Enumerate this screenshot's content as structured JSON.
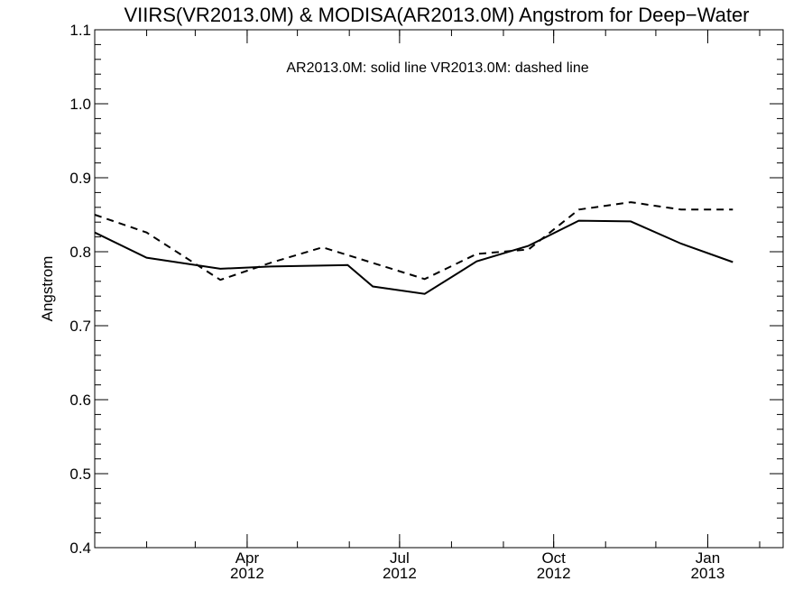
{
  "chart_data": {
    "type": "line",
    "title": "VIIRS(VR2013.0M) & MODISA(AR2013.0M)  Angstrom for Deep−Water",
    "legend_text": "AR2013.0M: solid line   VR2013.0M: dashed line",
    "xlabel": "",
    "ylabel": "Angstrom",
    "ylim": [
      0.4,
      1.1
    ],
    "yticks": [
      0.4,
      0.5,
      0.6,
      0.7,
      0.8,
      0.9,
      1.0,
      1.1
    ],
    "ytick_labels": [
      "0.4",
      "0.5",
      "0.6",
      "0.7",
      "0.8",
      "0.9",
      "1.0",
      "1.1"
    ],
    "xlim": [
      "2012-01-01",
      "2013-02-15"
    ],
    "xticks": [
      {
        "date": "2012-04-01",
        "month": "Apr",
        "year": "2012"
      },
      {
        "date": "2012-07-01",
        "month": "Jul",
        "year": "2012"
      },
      {
        "date": "2012-10-01",
        "month": "Oct",
        "year": "2012"
      },
      {
        "date": "2013-01-01",
        "month": "Jan",
        "year": "2013"
      }
    ],
    "series": [
      {
        "name": "AR2013.0M",
        "style": "solid",
        "points": [
          {
            "x": "2012-01-01",
            "y": 0.826
          },
          {
            "x": "2012-02-01",
            "y": 0.792
          },
          {
            "x": "2012-03-16",
            "y": 0.777
          },
          {
            "x": "2012-04-15",
            "y": 0.78
          },
          {
            "x": "2012-05-31",
            "y": 0.782
          },
          {
            "x": "2012-06-15",
            "y": 0.753
          },
          {
            "x": "2012-07-16",
            "y": 0.743
          },
          {
            "x": "2012-08-16",
            "y": 0.787
          },
          {
            "x": "2012-09-16",
            "y": 0.808
          },
          {
            "x": "2012-10-16",
            "y": 0.842
          },
          {
            "x": "2012-11-16",
            "y": 0.841
          },
          {
            "x": "2012-12-16",
            "y": 0.811
          },
          {
            "x": "2013-01-16",
            "y": 0.786
          }
        ]
      },
      {
        "name": "VR2013.0M",
        "style": "dashed",
        "points": [
          {
            "x": "2012-01-01",
            "y": 0.85
          },
          {
            "x": "2012-02-01",
            "y": 0.826
          },
          {
            "x": "2012-03-16",
            "y": 0.762
          },
          {
            "x": "2012-04-15",
            "y": 0.785
          },
          {
            "x": "2012-05-16",
            "y": 0.806
          },
          {
            "x": "2012-07-16",
            "y": 0.763
          },
          {
            "x": "2012-08-16",
            "y": 0.797
          },
          {
            "x": "2012-09-16",
            "y": 0.803
          },
          {
            "x": "2012-10-16",
            "y": 0.857
          },
          {
            "x": "2012-11-16",
            "y": 0.867
          },
          {
            "x": "2012-12-16",
            "y": 0.857
          },
          {
            "x": "2013-01-16",
            "y": 0.857
          }
        ]
      }
    ]
  }
}
